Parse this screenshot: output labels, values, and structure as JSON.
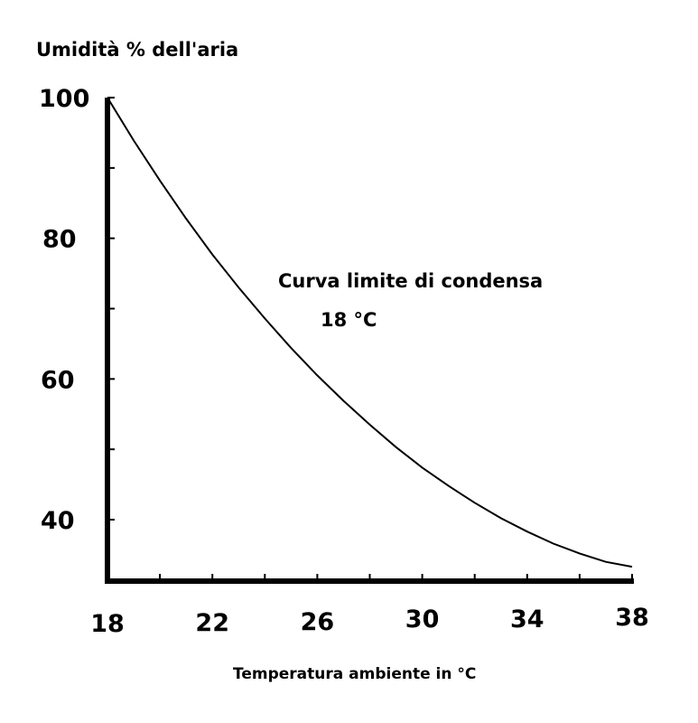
{
  "chart_data": {
    "type": "line",
    "title": "",
    "ylabel": "Umidità % dell'aria",
    "xlabel": "Temperatura ambiente in °C",
    "xlim": [
      18,
      38
    ],
    "ylim": [
      30,
      100
    ],
    "x_ticks": [
      18,
      22,
      26,
      30,
      34,
      38
    ],
    "y_ticks": [
      40,
      60,
      80,
      100
    ],
    "grid": false,
    "series": [
      {
        "x": [
          18,
          19,
          20,
          21,
          22,
          23,
          24,
          25,
          26,
          27,
          28,
          29,
          30,
          31,
          32,
          33,
          34,
          35,
          36,
          37,
          38
        ],
        "y": [
          100,
          93.9,
          88.2,
          82.8,
          77.7,
          73.0,
          68.6,
          64.4,
          60.5,
          56.9,
          53.5,
          50.3,
          47.4,
          44.8,
          42.4,
          40.2,
          38.3,
          36.6,
          35.2,
          34.0,
          33.3
        ]
      }
    ],
    "annotations": [
      {
        "text": "Curva limite di condensa"
      },
      {
        "text": "18 °C"
      }
    ]
  }
}
